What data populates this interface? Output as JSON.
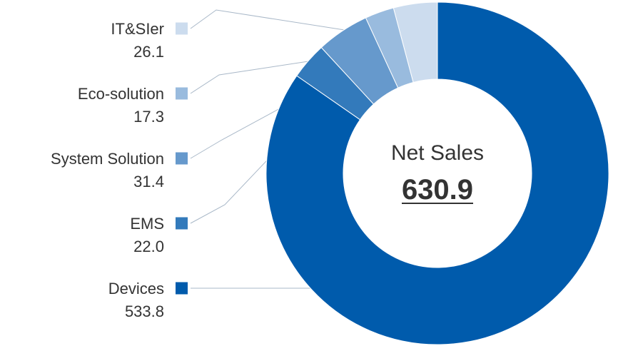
{
  "chart_data": {
    "type": "pie",
    "variant": "donut",
    "center_label": "Net Sales",
    "center_value": "630.9",
    "categories": [
      "IT&SIer",
      "Eco-solution",
      "System Solution",
      "EMS",
      "Devices"
    ],
    "values": [
      26.1,
      17.3,
      31.4,
      22.0,
      533.8
    ],
    "value_labels": [
      "26.1",
      "17.3",
      "31.4",
      "22.0",
      "533.8"
    ],
    "colors": [
      "#ccdcee",
      "#99bbde",
      "#6699cc",
      "#337abb",
      "#005bac"
    ],
    "legend_position": "left"
  }
}
